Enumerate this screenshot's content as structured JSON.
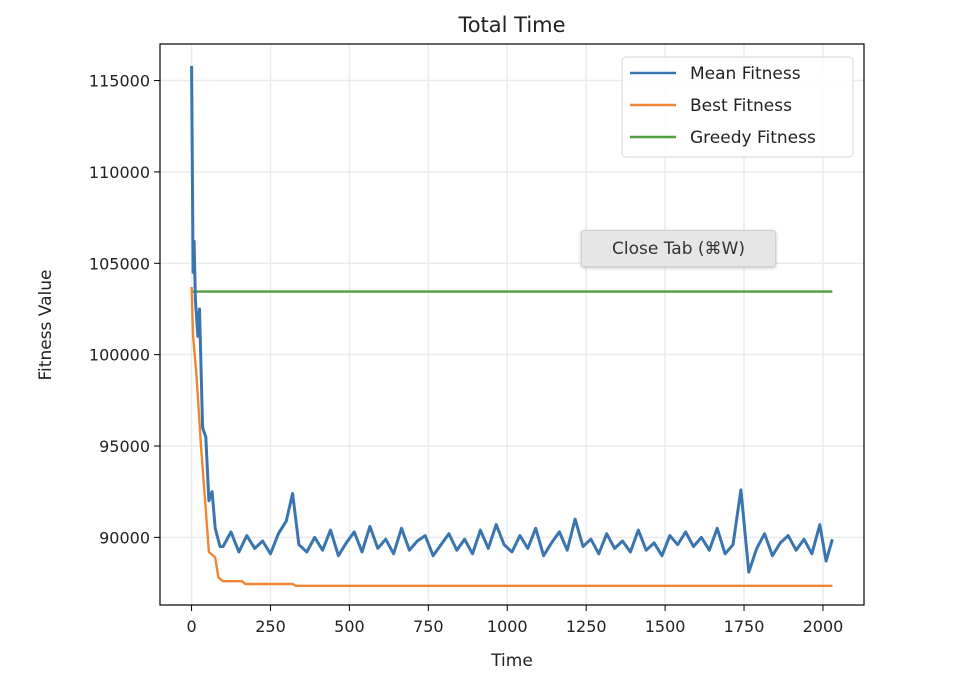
{
  "chart_data": {
    "type": "line",
    "title": "Total Time",
    "xlabel": "Time",
    "ylabel": "Fitness Value",
    "xlim": [
      -100,
      2130
    ],
    "ylim": [
      86300,
      117000
    ],
    "xticks": [
      0,
      250,
      500,
      750,
      1000,
      1250,
      1500,
      1750,
      2000
    ],
    "yticks": [
      90000,
      95000,
      100000,
      105000,
      110000,
      115000
    ],
    "grid": true,
    "legend_position": "top-right",
    "series": [
      {
        "name": "Mean Fitness",
        "color": "#3a75af",
        "x": [
          0,
          5,
          8,
          12,
          20,
          25,
          35,
          45,
          55,
          65,
          75,
          90,
          100,
          125,
          150,
          175,
          200,
          225,
          250,
          275,
          300,
          320,
          340,
          365,
          390,
          415,
          440,
          465,
          490,
          515,
          540,
          565,
          590,
          615,
          640,
          665,
          690,
          715,
          740,
          765,
          790,
          815,
          840,
          865,
          890,
          915,
          940,
          965,
          990,
          1015,
          1040,
          1065,
          1090,
          1115,
          1140,
          1165,
          1190,
          1215,
          1240,
          1265,
          1290,
          1315,
          1340,
          1365,
          1390,
          1415,
          1440,
          1465,
          1490,
          1515,
          1540,
          1565,
          1590,
          1615,
          1640,
          1665,
          1690,
          1715,
          1740,
          1765,
          1790,
          1815,
          1840,
          1865,
          1890,
          1915,
          1940,
          1965,
          1990,
          2010,
          2030
        ],
        "y": [
          115800,
          104500,
          106200,
          103000,
          101000,
          102500,
          96000,
          95500,
          92000,
          92500,
          90500,
          89500,
          89500,
          90300,
          89200,
          90100,
          89400,
          89800,
          89100,
          90200,
          90900,
          92400,
          89600,
          89200,
          90000,
          89300,
          90400,
          89000,
          89700,
          90300,
          89200,
          90600,
          89400,
          89900,
          89100,
          90500,
          89300,
          89800,
          90100,
          89000,
          89600,
          90200,
          89300,
          89900,
          89100,
          90400,
          89400,
          90700,
          89600,
          89200,
          90100,
          89400,
          90500,
          89000,
          89700,
          90300,
          89300,
          91000,
          89500,
          89900,
          89100,
          90200,
          89400,
          89800,
          89200,
          90400,
          89300,
          89700,
          89000,
          90100,
          89600,
          90300,
          89500,
          90000,
          89300,
          90500,
          89100,
          89600,
          92600,
          88100,
          89400,
          90200,
          89000,
          89700,
          90100,
          89300,
          89900,
          89100,
          90700,
          88700,
          89900
        ]
      },
      {
        "name": "Best Fitness",
        "color": "#ef8636",
        "x": [
          0,
          5,
          15,
          30,
          45,
          55,
          75,
          85,
          100,
          160,
          170,
          320,
          330,
          2030
        ],
        "y": [
          103700,
          101000,
          99000,
          95000,
          91500,
          89200,
          88900,
          87800,
          87600,
          87600,
          87450,
          87450,
          87350,
          87350
        ]
      },
      {
        "name": "Greedy Fitness",
        "color": "#519e3e",
        "x": [
          0,
          2030
        ],
        "y": [
          103450,
          103450
        ]
      }
    ]
  },
  "tooltip": {
    "text": "Close Tab (⌘W)"
  }
}
